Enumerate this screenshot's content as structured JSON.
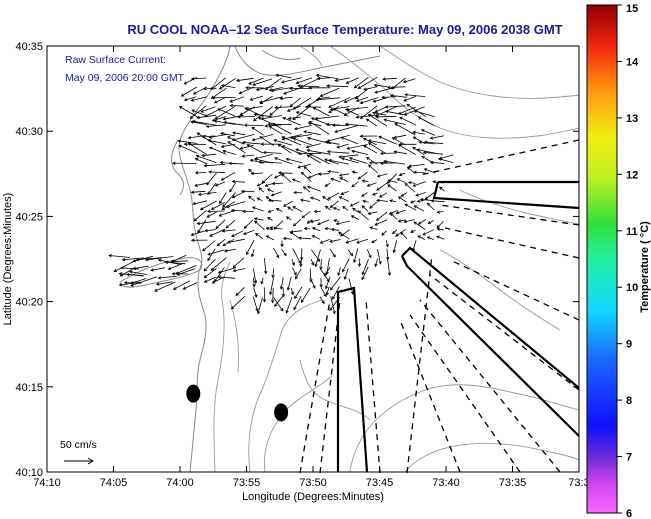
{
  "chart_data": {
    "type": "quiver",
    "title": "RU COOL  NOAA–12  Sea Surface Temperature:  May 09, 2006 2038 GMT",
    "annotations": [
      "Raw Surface Current:",
      "May 09, 2006 20:00 GMT"
    ],
    "xlabel": "Longitude (Degrees:Minutes)",
    "ylabel": "Latitude (Degrees:Minutes)",
    "x_ticks": [
      "74:10",
      "74:05",
      "74:00",
      "73:55",
      "73:50",
      "73:45",
      "73:40",
      "73:35",
      "73:3"
    ],
    "y_ticks": [
      "40:10",
      "40:15",
      "40:20",
      "40:25",
      "40:30",
      "40:35"
    ],
    "xlim_minutes_west": [
      4450,
      4410
    ],
    "ylim_minutes_north": [
      2410,
      2435
    ],
    "scale_label": "50 cm/s",
    "colorbar": {
      "label": "Temperature ( °C)",
      "ticks": [
        "6",
        "7",
        "8",
        "9",
        "10",
        "11",
        "12",
        "13",
        "14",
        "15"
      ],
      "range": [
        6,
        15
      ]
    },
    "markers": [
      {
        "lon": "73:59",
        "lat": "40:14.6"
      },
      {
        "lon": "73:52.4",
        "lat": "40:13.5"
      }
    ]
  }
}
